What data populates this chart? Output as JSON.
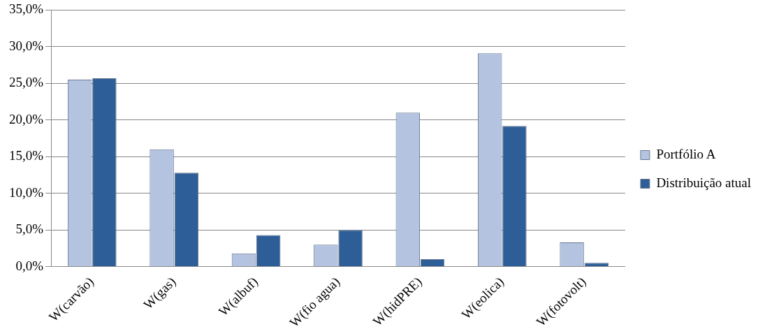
{
  "chart_data": {
    "type": "bar",
    "categories": [
      "W(carvão)",
      "W(gas)",
      "W(albuf)",
      "W(fio agua)",
      "W(hidPRE)",
      "W(eolica)",
      "W(fotovolt)"
    ],
    "series": [
      {
        "name": "Portfólio A",
        "color": "#b4c3e0",
        "values": [
          25.5,
          16.0,
          1.8,
          3.0,
          21.0,
          29.1,
          3.3
        ]
      },
      {
        "name": "Distribuição atual",
        "color": "#2e5e98",
        "values": [
          25.7,
          12.8,
          4.3,
          5.0,
          1.0,
          19.2,
          0.5
        ]
      }
    ],
    "ylim": [
      0,
      35
    ],
    "yticks": [
      {
        "value": 0,
        "label": "0,0%"
      },
      {
        "value": 5,
        "label": "5,0%"
      },
      {
        "value": 10,
        "label": "10,0%"
      },
      {
        "value": 15,
        "label": "15,0%"
      },
      {
        "value": 20,
        "label": "20,0%"
      },
      {
        "value": 25,
        "label": "25,0%"
      },
      {
        "value": 30,
        "label": "30,0%"
      },
      {
        "value": 35,
        "label": "35,0%"
      }
    ],
    "grid": "y",
    "legend": "right"
  }
}
